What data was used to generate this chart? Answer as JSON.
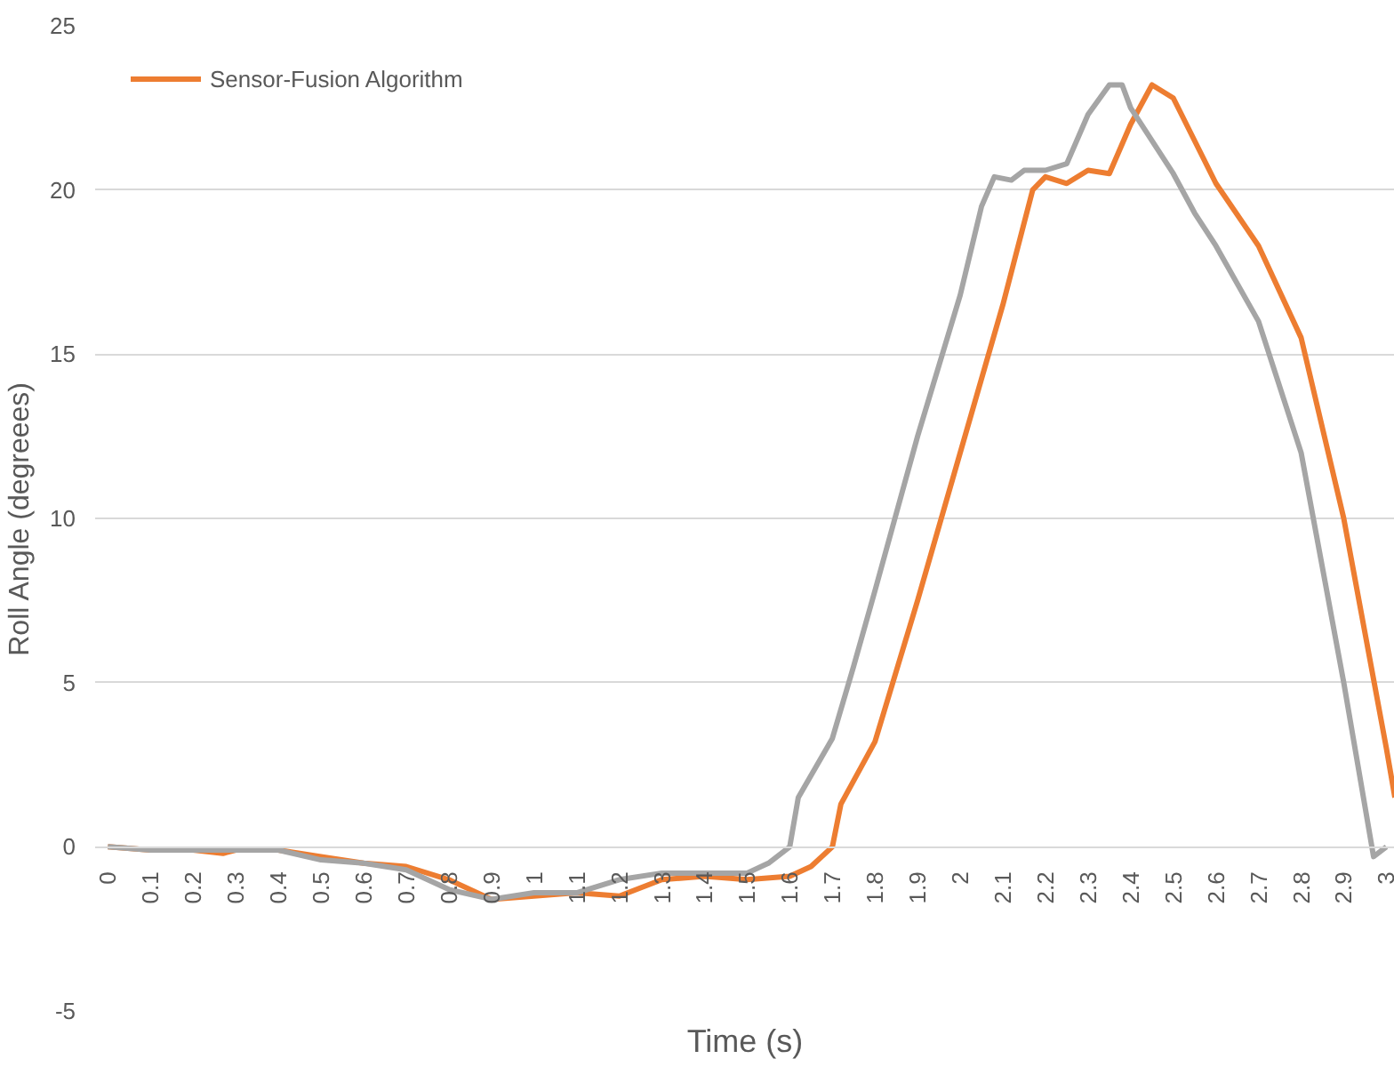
{
  "chart_data": {
    "type": "line",
    "xlabel": "Time (s)",
    "ylabel": "Roll Angle (degreees)",
    "xlim": [
      -0.03,
      3.02
    ],
    "ylim": [
      -5,
      25
    ],
    "xticks": [
      0,
      0.1,
      0.2,
      0.3,
      0.4,
      0.5,
      0.6,
      0.7,
      0.8,
      0.9,
      1,
      1.1,
      1.2,
      1.3,
      1.4,
      1.5,
      1.6,
      1.7,
      1.8,
      1.9,
      2,
      2.1,
      2.2,
      2.3,
      2.4,
      2.5,
      2.6,
      2.7,
      2.8,
      2.9,
      3
    ],
    "yticks": [
      -5,
      0,
      5,
      10,
      15,
      20,
      25
    ],
    "grid": "y",
    "legend": "top left",
    "line_style": "solid",
    "series": [
      {
        "name": "Sensor-Fusion Algorithm",
        "color": "#ed7d31",
        "x": [
          0,
          0.1,
          0.2,
          0.27,
          0.3,
          0.4,
          0.5,
          0.6,
          0.7,
          0.8,
          0.9,
          1.0,
          1.1,
          1.2,
          1.3,
          1.4,
          1.5,
          1.6,
          1.65,
          1.7,
          1.72,
          1.8,
          1.9,
          2.0,
          2.1,
          2.17,
          2.2,
          2.25,
          2.3,
          2.35,
          2.4,
          2.45,
          2.5,
          2.55,
          2.6,
          2.7,
          2.8,
          2.9,
          2.95,
          3.0,
          3.02
        ],
        "values": [
          0,
          -0.1,
          -0.1,
          -0.2,
          -0.1,
          -0.1,
          -0.3,
          -0.5,
          -0.6,
          -1.0,
          -1.6,
          -1.5,
          -1.4,
          -1.5,
          -1.0,
          -0.9,
          -1.0,
          -0.9,
          -0.6,
          0.0,
          1.3,
          3.2,
          7.5,
          12.0,
          16.5,
          20.0,
          20.4,
          20.2,
          20.6,
          20.5,
          22.0,
          23.2,
          22.8,
          21.5,
          20.2,
          18.3,
          15.5,
          10.0,
          6.5,
          3.0,
          1.5
        ]
      },
      {
        "color": "#a5a5a5",
        "x": [
          0,
          0.1,
          0.2,
          0.3,
          0.4,
          0.5,
          0.6,
          0.7,
          0.8,
          0.9,
          1.0,
          1.1,
          1.2,
          1.3,
          1.4,
          1.5,
          1.55,
          1.6,
          1.62,
          1.7,
          1.75,
          1.8,
          1.9,
          2.0,
          2.05,
          2.08,
          2.12,
          2.15,
          2.2,
          2.25,
          2.3,
          2.35,
          2.38,
          2.4,
          2.5,
          2.55,
          2.6,
          2.7,
          2.8,
          2.9,
          2.97,
          3.0
        ],
        "values": [
          0,
          -0.1,
          -0.1,
          -0.1,
          -0.1,
          -0.4,
          -0.5,
          -0.7,
          -1.3,
          -1.6,
          -1.4,
          -1.4,
          -1.0,
          -0.8,
          -0.8,
          -0.8,
          -0.5,
          0.0,
          1.5,
          3.3,
          5.5,
          7.8,
          12.5,
          16.8,
          19.5,
          20.4,
          20.3,
          20.6,
          20.6,
          20.8,
          22.3,
          23.2,
          23.2,
          22.5,
          20.5,
          19.3,
          18.3,
          16.0,
          12.0,
          5.0,
          -0.3,
          0.0
        ]
      }
    ]
  }
}
